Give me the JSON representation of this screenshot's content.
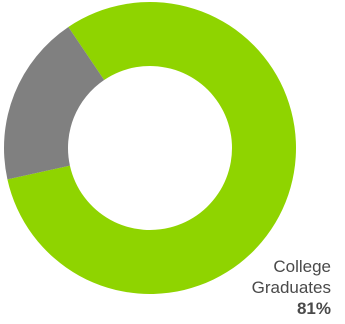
{
  "chart_data": {
    "type": "pie",
    "title": "",
    "categories": [
      "College Graduates",
      ""
    ],
    "values": [
      81,
      19
    ],
    "colors": [
      "#8fd400",
      "#808080"
    ],
    "start_angle_deg": -34,
    "labels": [
      {
        "line1": "College",
        "line2": "Graduates",
        "value_text": "81%"
      }
    ]
  }
}
